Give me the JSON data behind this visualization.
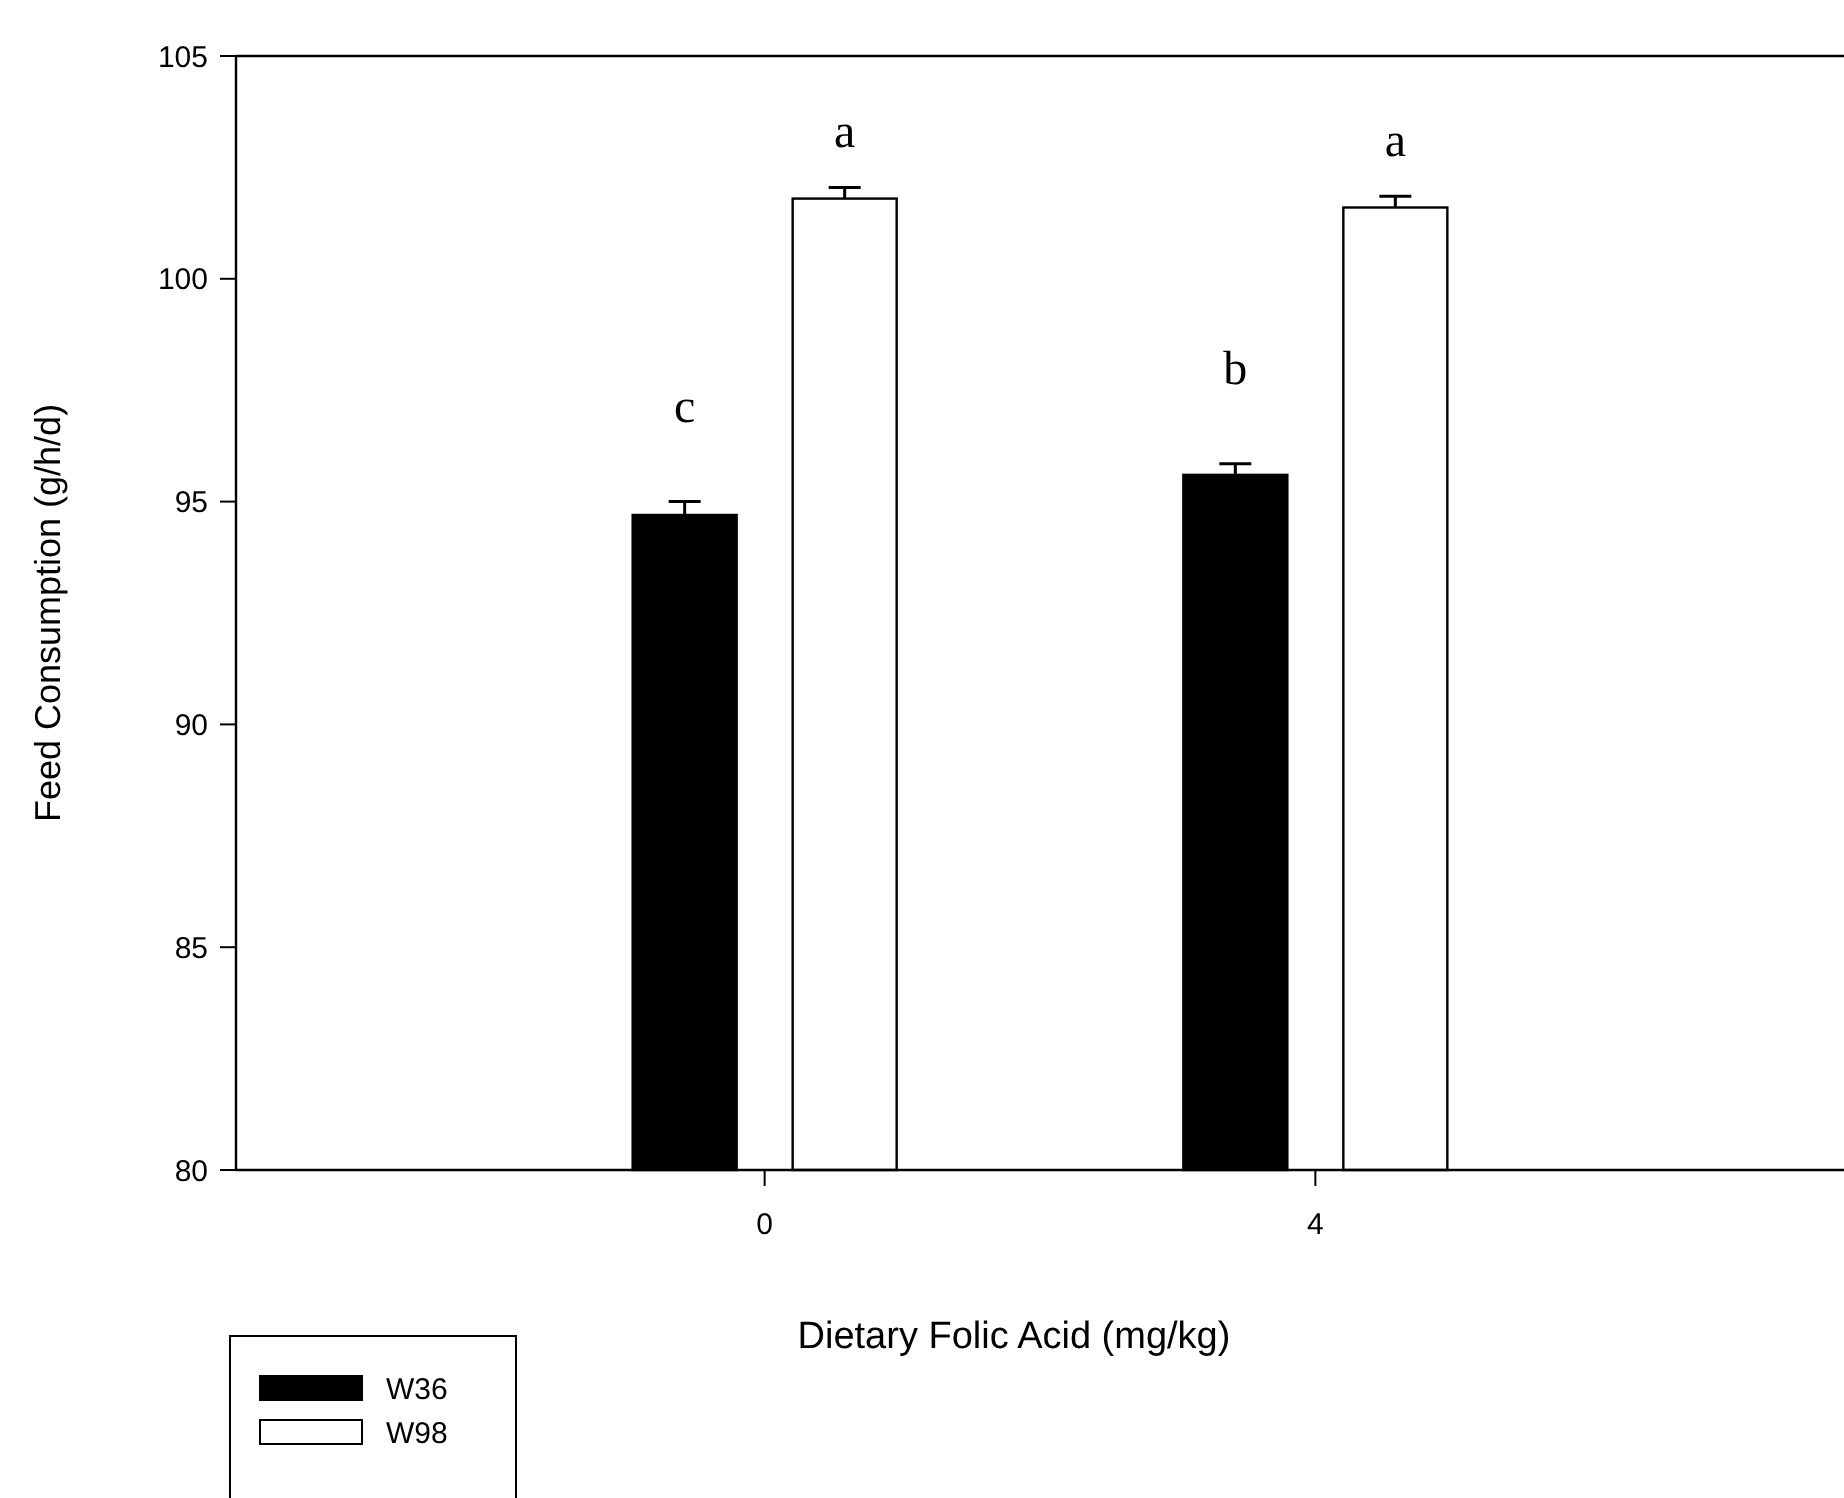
{
  "chart_data": {
    "type": "bar",
    "xlabel": "Dietary Folic Acid (mg/kg)",
    "ylabel": "Feed Consumption (g/h/d)",
    "categories": [
      "0",
      "4"
    ],
    "series": [
      {
        "name": "W36",
        "color": "#000000",
        "values": [
          94.7,
          95.6
        ],
        "errors": [
          0.3,
          0.25
        ]
      },
      {
        "name": "W98",
        "color": "#ffffff",
        "values": [
          101.8,
          101.6
        ],
        "errors": [
          0.25,
          0.25
        ]
      }
    ],
    "ylim": [
      80,
      105
    ],
    "yticks": [
      80,
      85,
      90,
      95,
      100,
      105
    ],
    "grid": false,
    "legend": "bottom left",
    "annotations": [
      "c",
      "a",
      "b",
      "a"
    ]
  }
}
